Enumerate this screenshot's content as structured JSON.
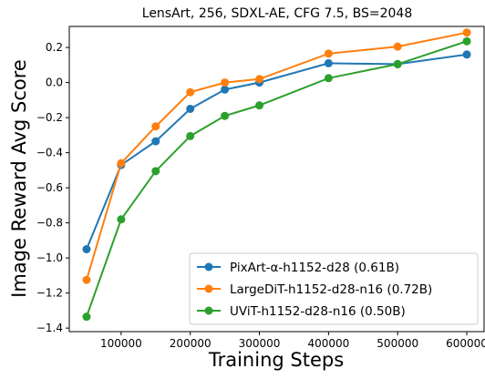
{
  "chart_data": {
    "type": "line",
    "title": "LensArt, 256, SDXL-AE, CFG 7.5, BS=2048",
    "xlabel": "Training Steps",
    "ylabel": "Image Reward Avg Score",
    "xlim": [
      25000,
      625000
    ],
    "ylim": [
      -1.42,
      0.32
    ],
    "xticks": [
      100000,
      200000,
      300000,
      400000,
      500000,
      600000
    ],
    "yticks": [
      -1.4,
      -1.2,
      -1.0,
      -0.8,
      -0.6,
      -0.4,
      -0.2,
      0.0,
      0.2
    ],
    "xtick_labels": [
      "100000",
      "200000",
      "300000",
      "400000",
      "500000",
      "600000"
    ],
    "ytick_labels": [
      "−1.4",
      "−1.2",
      "−1.0",
      "−0.8",
      "−0.6",
      "−0.4",
      "−0.2",
      "0.0",
      "0.2"
    ],
    "grid": false,
    "legend_position": "lower-right",
    "series": [
      {
        "name": "PixArt-α-h1152-d28 (0.61B)",
        "color": "#1f77b4",
        "x": [
          50000,
          100000,
          150000,
          200000,
          250000,
          300000,
          400000,
          500000,
          600000
        ],
        "y": [
          -0.95,
          -0.47,
          -0.335,
          -0.15,
          -0.04,
          0.0,
          0.11,
          0.105,
          0.16
        ]
      },
      {
        "name": "LargeDiT-h1152-d28-n16 (0.72B)",
        "color": "#ff7f0e",
        "x": [
          50000,
          100000,
          150000,
          200000,
          250000,
          300000,
          400000,
          500000,
          600000
        ],
        "y": [
          -1.125,
          -0.46,
          -0.25,
          -0.055,
          0.0,
          0.02,
          0.165,
          0.205,
          0.285
        ]
      },
      {
        "name": "UViT-h1152-d28-n16 (0.50B)",
        "color": "#2ca02c",
        "x": [
          50000,
          100000,
          150000,
          200000,
          250000,
          300000,
          400000,
          500000,
          600000
        ],
        "y": [
          -1.335,
          -0.78,
          -0.505,
          -0.305,
          -0.19,
          -0.13,
          0.025,
          0.105,
          0.235
        ]
      }
    ]
  }
}
